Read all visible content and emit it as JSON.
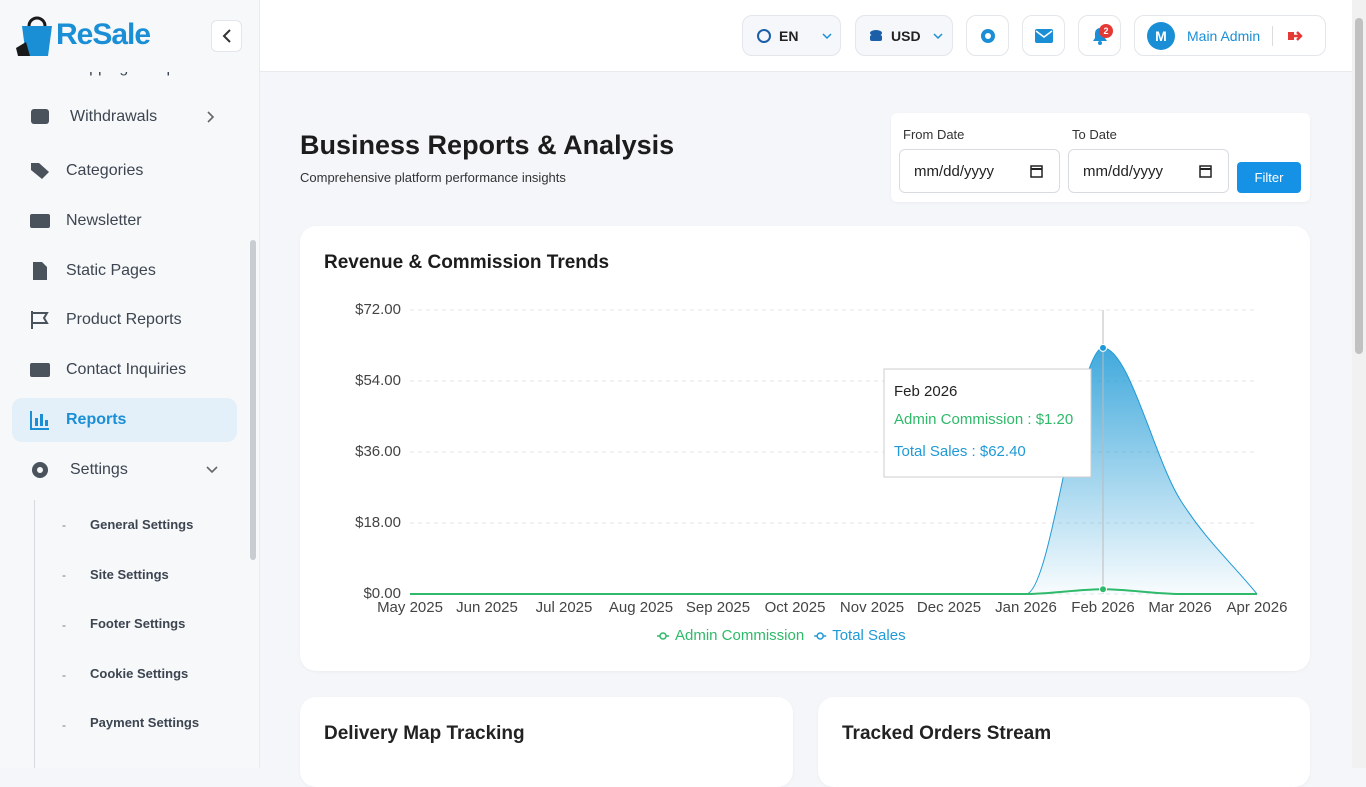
{
  "brand": "ReSale",
  "topbar": {
    "language": "EN",
    "currency": "USD",
    "notifications": 2,
    "avatar": "M",
    "user": "Main Admin"
  },
  "sidebar": {
    "items": [
      "Shipping Companies",
      "Withdrawals",
      "Categories",
      "Newsletter",
      "Static Pages",
      "Product Reports",
      "Contact Inquiries",
      "Reports",
      "Settings"
    ],
    "subitems": [
      "General Settings",
      "Site Settings",
      "Footer Settings",
      "Cookie Settings",
      "Payment Settings"
    ]
  },
  "header": {
    "title": "Business Reports & Analysis",
    "subtitle": "Comprehensive platform performance insights"
  },
  "filter": {
    "from_label": "From Date",
    "to_label": "To Date",
    "placeholder": "mm/dd/yyyy",
    "button": "Filter"
  },
  "chart_data": {
    "type": "line",
    "title": "Revenue & Commission Trends",
    "categories": [
      "May 2025",
      "Jun 2025",
      "Jul 2025",
      "Aug 2025",
      "Sep 2025",
      "Oct 2025",
      "Nov 2025",
      "Dec 2025",
      "Jan 2026",
      "Feb 2026",
      "Mar 2026",
      "Apr 2026"
    ],
    "series": [
      {
        "name": "Admin Commission",
        "color": "#2fb96a",
        "values": [
          0,
          0,
          0,
          0,
          0,
          0,
          0,
          0,
          0,
          1.2,
          0,
          0
        ]
      },
      {
        "name": "Total Sales",
        "color": "#1f9ad6",
        "values": [
          0,
          0,
          0,
          0,
          0,
          0,
          0,
          0,
          0,
          62.4,
          24,
          0
        ]
      }
    ],
    "ylim": [
      0,
      72
    ],
    "yticks": [
      {
        "value": 0,
        "label": "$0.00"
      },
      {
        "value": 18,
        "label": "$18.00"
      },
      {
        "value": 36,
        "label": "$36.00"
      },
      {
        "value": 54,
        "label": "$54.00"
      },
      {
        "value": 72,
        "label": "$72.00"
      }
    ],
    "grid": true,
    "legend": "bottom",
    "tooltip": {
      "title": "Feb 2026",
      "lines": [
        "Admin Commission : $1.20",
        "Total Sales : $62.40"
      ]
    }
  },
  "panels": [
    "Delivery Map Tracking",
    "Tracked Orders Stream"
  ]
}
